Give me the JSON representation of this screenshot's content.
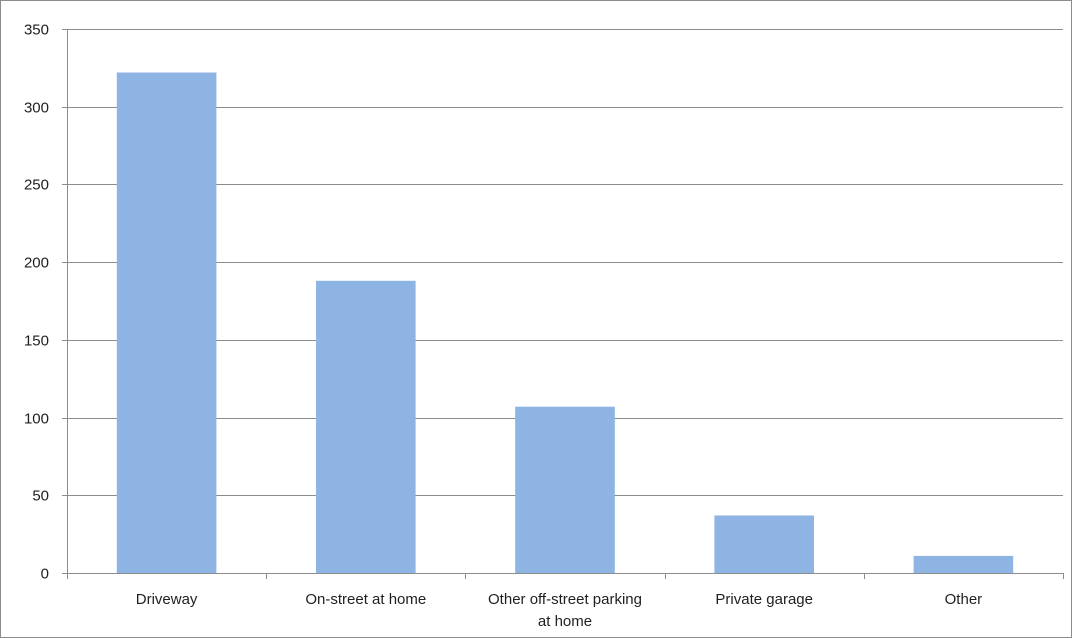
{
  "chart_data": {
    "type": "bar",
    "categories": [
      [
        "Driveway"
      ],
      [
        "On-street at home"
      ],
      [
        "Other off-street parking",
        "at home"
      ],
      [
        "Private garage"
      ],
      [
        "Other"
      ]
    ],
    "values": [
      322,
      188,
      107,
      37,
      11
    ],
    "ylim": [
      0,
      350
    ],
    "yticks": [
      0,
      50,
      100,
      150,
      200,
      250,
      300,
      350
    ],
    "grid": true,
    "legend": "none",
    "colors": {
      "bar": "#8eb4e3",
      "grid": "#8c8c8c",
      "axis": "#8c8c8c",
      "text": "#1f1f1f"
    }
  }
}
